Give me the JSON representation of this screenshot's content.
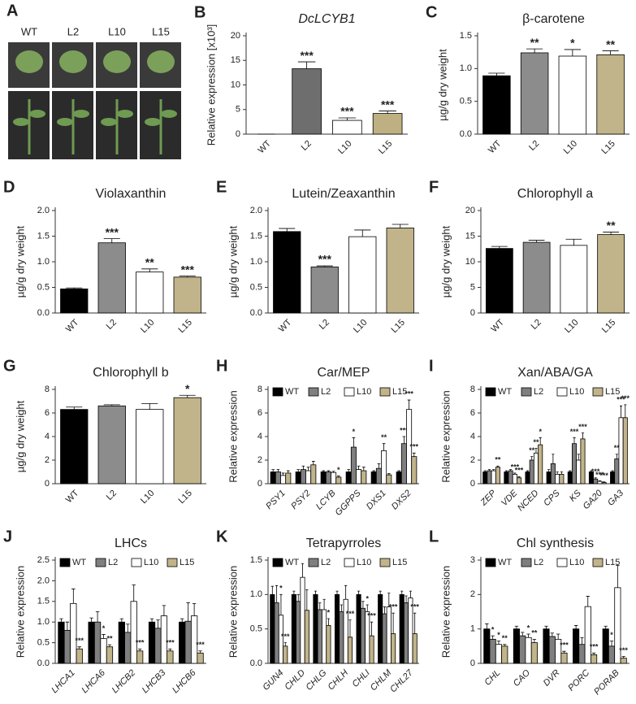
{
  "photos": {
    "panel": "A",
    "labels": [
      "WT",
      "L2",
      "L10",
      "L15"
    ]
  },
  "chart_data": [
    {
      "type": "bar",
      "panel": "B",
      "title": "DcLCYB1",
      "title_style": "italic",
      "ylabel": "Relative expression [x10³]",
      "categories": [
        "WT",
        "L2",
        "L10",
        "L15"
      ],
      "values": [
        0,
        13.3,
        2.8,
        4.2
      ],
      "errors": [
        0,
        1.4,
        0.5,
        0.5
      ],
      "significance": [
        null,
        "***",
        "***",
        "***"
      ],
      "colors": [
        "#000000",
        "#6e6e6e",
        "#ffffff",
        "#bfb083"
      ],
      "ylim": [
        0,
        20
      ],
      "yticks": [
        0,
        5,
        10,
        15,
        20
      ]
    },
    {
      "type": "bar",
      "panel": "C",
      "title": "β-carotene",
      "ylabel": "µg/g dry weight",
      "categories": [
        "WT",
        "L2",
        "L10",
        "L15"
      ],
      "values": [
        0.89,
        1.24,
        1.19,
        1.21
      ],
      "errors": [
        0.04,
        0.06,
        0.1,
        0.06
      ],
      "significance": [
        null,
        "**",
        "*",
        "**"
      ],
      "colors": [
        "#000000",
        "#8c8c8c",
        "#ffffff",
        "#c2b48a"
      ],
      "ylim": [
        0,
        1.5
      ],
      "yticks": [
        {
          "value": 0,
          "label": "0.0"
        },
        0.5,
        {
          "value": 1,
          "label": "1.0"
        },
        1.5
      ]
    },
    {
      "type": "bar",
      "panel": "D",
      "title": "Violaxanthin",
      "ylabel": "µg/g dry weight",
      "categories": [
        "WT",
        "L2",
        "L10",
        "L15"
      ],
      "values": [
        0.47,
        1.37,
        0.8,
        0.7
      ],
      "errors": [
        0.02,
        0.08,
        0.06,
        0.02
      ],
      "significance": [
        null,
        "***",
        "**",
        "***"
      ],
      "colors": [
        "#000000",
        "#8c8c8c",
        "#ffffff",
        "#c2b48a"
      ],
      "ylim": [
        0,
        2
      ],
      "yticks": [
        {
          "value": 0,
          "label": "0.0"
        },
        0.5,
        {
          "value": 1,
          "label": "1.0"
        },
        1.5,
        {
          "value": 2,
          "label": "2.0"
        }
      ]
    },
    {
      "type": "bar",
      "panel": "E",
      "title": "Lutein/Zeaxanthin",
      "ylabel": "µg/g dry weight",
      "categories": [
        "WT",
        "L2",
        "L10",
        "L15"
      ],
      "values": [
        1.59,
        0.9,
        1.49,
        1.66
      ],
      "errors": [
        0.06,
        0.02,
        0.13,
        0.07
      ],
      "significance": [
        null,
        "***",
        null,
        null
      ],
      "colors": [
        "#000000",
        "#8c8c8c",
        "#ffffff",
        "#c2b48a"
      ],
      "ylim": [
        0,
        2
      ],
      "yticks": [
        {
          "value": 0,
          "label": "0.0"
        },
        0.5,
        {
          "value": 1,
          "label": "1.0"
        },
        1.5,
        {
          "value": 2,
          "label": "2.0"
        }
      ]
    },
    {
      "type": "bar",
      "panel": "F",
      "title": "Chlorophyll a",
      "ylabel": "µg/g dry weight",
      "categories": [
        "WT",
        "L2",
        "L10",
        "L15"
      ],
      "values": [
        12.6,
        13.8,
        13.2,
        15.3
      ],
      "errors": [
        0.4,
        0.4,
        1.2,
        0.5
      ],
      "significance": [
        null,
        null,
        null,
        "**"
      ],
      "colors": [
        "#000000",
        "#8c8c8c",
        "#ffffff",
        "#c2b48a"
      ],
      "ylim": [
        0,
        20
      ],
      "yticks": [
        0,
        5,
        10,
        15,
        20
      ]
    },
    {
      "type": "bar",
      "panel": "G",
      "title": "Chlorophyll b",
      "ylabel": "µg/g dry weight",
      "categories": [
        "WT",
        "L2",
        "L10",
        "L15"
      ],
      "values": [
        6.3,
        6.6,
        6.3,
        7.3
      ],
      "errors": [
        0.2,
        0.1,
        0.5,
        0.2
      ],
      "significance": [
        null,
        null,
        null,
        "*"
      ],
      "colors": [
        "#000000",
        "#8c8c8c",
        "#ffffff",
        "#c2b48a"
      ],
      "ylim": [
        0,
        8
      ],
      "yticks": [
        0,
        2,
        4,
        6,
        8
      ]
    },
    {
      "type": "bar",
      "panel": "H",
      "title": "Car/MEP",
      "ylabel": "Relative expression",
      "category_style": "italic",
      "categories": [
        "PSY1",
        "PSY2",
        "LCYB",
        "GGPPS",
        "DXS1",
        "DXS2"
      ],
      "ylim": [
        0,
        8
      ],
      "yticks": [
        0,
        2,
        4,
        6,
        8
      ],
      "series": [
        {
          "name": "WT",
          "color": "#000000",
          "values": [
            1,
            1,
            1,
            1,
            1,
            1
          ],
          "errors": [
            0.2,
            0.2,
            0.1,
            0.2,
            0.1,
            0.1
          ],
          "significance": [
            null,
            null,
            null,
            null,
            null,
            null
          ]
        },
        {
          "name": "L2",
          "color": "#7f7f7f",
          "values": [
            1.0,
            1.2,
            1.0,
            3.1,
            1.3,
            3.4
          ],
          "errors": [
            0.2,
            0.3,
            0.1,
            0.8,
            0.4,
            0.6
          ],
          "significance": [
            null,
            null,
            null,
            "*",
            null,
            "***"
          ]
        },
        {
          "name": "L10",
          "color": "#ffffff",
          "values": [
            0.7,
            1.1,
            0.95,
            1.2,
            2.8,
            6.3
          ],
          "errors": [
            0.2,
            0.3,
            0.1,
            0.3,
            0.6,
            0.8
          ],
          "significance": [
            null,
            null,
            null,
            null,
            "**",
            "***"
          ]
        },
        {
          "name": "L15",
          "color": "#c2b48a",
          "values": [
            0.9,
            1.6,
            0.55,
            1.1,
            0.75,
            2.3
          ],
          "errors": [
            0.2,
            0.3,
            0.1,
            0.3,
            0.1,
            0.3
          ],
          "significance": [
            null,
            null,
            "*",
            null,
            null,
            "***"
          ]
        }
      ]
    },
    {
      "type": "bar",
      "panel": "I",
      "title": "Xan/ABA/GA",
      "ylabel": "Relative expression",
      "category_style": "italic",
      "categories": [
        "ZEP",
        "VDE",
        "NCED",
        "CPS",
        "KS",
        "GA20",
        "GA3"
      ],
      "ylim": [
        0,
        8
      ],
      "yticks": [
        0,
        2,
        4,
        6,
        8
      ],
      "series": [
        {
          "name": "WT",
          "color": "#000000",
          "values": [
            1,
            1,
            1,
            1,
            1,
            1,
            1
          ],
          "errors": [
            0.1,
            0.1,
            0.1,
            0.2,
            0.1,
            0.1,
            0.1
          ],
          "significance": [
            null,
            null,
            null,
            null,
            null,
            null,
            null
          ]
        },
        {
          "name": "L2",
          "color": "#7f7f7f",
          "values": [
            1.1,
            1.1,
            2.0,
            1.7,
            3.4,
            0.4,
            2.1
          ],
          "errors": [
            0.1,
            0.1,
            0.3,
            0.8,
            0.5,
            0.1,
            0.4
          ],
          "significance": [
            null,
            null,
            "**",
            null,
            "***",
            "***",
            "**"
          ]
        },
        {
          "name": "L10",
          "color": "#ffffff",
          "values": [
            1.1,
            0.8,
            2.6,
            0.8,
            2.0,
            0.2,
            5.6
          ],
          "errors": [
            0.1,
            0.1,
            0.4,
            0.2,
            0.5,
            0.05,
            1.0
          ],
          "significance": [
            null,
            "***",
            "**",
            null,
            null,
            "***",
            "***"
          ]
        },
        {
          "name": "L15",
          "color": "#c2b48a",
          "values": [
            1.4,
            0.5,
            3.3,
            0.8,
            3.8,
            0.1,
            5.6
          ],
          "errors": [
            0.1,
            0.1,
            0.6,
            0.2,
            0.5,
            0.05,
            1.1
          ],
          "significance": [
            "**",
            "***",
            "*",
            null,
            "***",
            "***",
            "***"
          ]
        }
      ]
    },
    {
      "type": "bar",
      "panel": "J",
      "title": "LHCs",
      "ylabel": "Relative expression",
      "category_style": "italic",
      "categories": [
        "LHCA1",
        "LHCA6",
        "LHCB2",
        "LHCB3",
        "LHCB6"
      ],
      "ylim": [
        0,
        2.5
      ],
      "yticks": [
        {
          "value": 0,
          "label": "0.0"
        },
        0.5,
        {
          "value": 1,
          "label": "1.0"
        },
        1.5,
        {
          "value": 2,
          "label": "2.0"
        },
        2.5
      ],
      "series": [
        {
          "name": "WT",
          "color": "#000000",
          "values": [
            1,
            1,
            1,
            1,
            1
          ],
          "errors": [
            0.08,
            0.1,
            0.08,
            0.08,
            0.08
          ],
          "significance": [
            null,
            null,
            null,
            null,
            null
          ]
        },
        {
          "name": "L2",
          "color": "#7f7f7f",
          "values": [
            0.8,
            1.0,
            0.75,
            0.85,
            1.02
          ],
          "errors": [
            0.2,
            0.25,
            0.2,
            0.2,
            0.45
          ],
          "significance": [
            null,
            null,
            null,
            null,
            null
          ]
        },
        {
          "name": "L10",
          "color": "#ffffff",
          "values": [
            1.45,
            0.6,
            1.5,
            1.15,
            1.15
          ],
          "errors": [
            0.35,
            0.1,
            0.4,
            0.25,
            0.3
          ],
          "significance": [
            null,
            "*",
            null,
            null,
            null
          ]
        },
        {
          "name": "L15",
          "color": "#c2b48a",
          "values": [
            0.35,
            0.4,
            0.3,
            0.3,
            0.25
          ],
          "errors": [
            0.05,
            0.05,
            0.05,
            0.05,
            0.05
          ],
          "significance": [
            "***",
            "**",
            "***",
            "***",
            "***"
          ]
        }
      ]
    },
    {
      "type": "bar",
      "panel": "K",
      "title": "Tetrapyrroles",
      "ylabel": "Relative expression",
      "category_style": "italic",
      "categories": [
        "GUN4",
        "CHLD",
        "CHLG",
        "CHLH",
        "CHLI",
        "CHLM",
        "CHL27"
      ],
      "ylim": [
        0,
        1.5
      ],
      "yticks": [
        {
          "value": 0,
          "label": "0.0"
        },
        0.5,
        {
          "value": 1,
          "label": "1.0"
        },
        1.5
      ],
      "series": [
        {
          "name": "WT",
          "color": "#000000",
          "values": [
            1,
            1,
            1,
            1,
            1,
            1,
            1
          ],
          "errors": [
            0.12,
            0.05,
            0.05,
            0.05,
            0.05,
            0.05,
            0.05
          ],
          "significance": [
            null,
            null,
            null,
            null,
            null,
            null,
            null
          ]
        },
        {
          "name": "L2",
          "color": "#7f7f7f",
          "values": [
            0.88,
            0.9,
            0.78,
            0.75,
            0.8,
            0.72,
            0.88
          ],
          "errors": [
            0.25,
            0.1,
            0.1,
            0.1,
            0.1,
            0.1,
            0.1
          ],
          "significance": [
            null,
            null,
            null,
            null,
            null,
            null,
            null
          ]
        },
        {
          "name": "L10",
          "color": "#ffffff",
          "values": [
            0.7,
            1.25,
            0.78,
            0.93,
            0.75,
            0.82,
            0.95
          ],
          "errors": [
            0.3,
            0.2,
            0.15,
            0.2,
            0.1,
            0.2,
            0.1
          ],
          "significance": [
            "*",
            null,
            null,
            null,
            "*",
            null,
            null
          ]
        },
        {
          "name": "L15",
          "color": "#c2b48a",
          "values": [
            0.25,
            0.77,
            0.55,
            0.38,
            0.4,
            0.43,
            0.43
          ],
          "errors": [
            0.05,
            0.3,
            0.1,
            0.25,
            0.2,
            0.3,
            0.3
          ],
          "significance": [
            "***",
            null,
            "*",
            "***",
            "***",
            "***",
            "***"
          ]
        }
      ]
    },
    {
      "type": "bar",
      "panel": "L",
      "title": "Chl synthesis",
      "ylabel": "Relative expression",
      "category_style": "italic",
      "categories": [
        "CHL",
        "CAO",
        "DVR",
        "PORC",
        "PORAB"
      ],
      "ylim": [
        0,
        3
      ],
      "yticks": [
        0,
        1,
        2,
        3
      ],
      "series": [
        {
          "name": "WT",
          "color": "#000000",
          "values": [
            1,
            1,
            1,
            1,
            1
          ],
          "errors": [
            0.15,
            0.08,
            0.08,
            0.1,
            0.08
          ],
          "significance": [
            null,
            null,
            null,
            null,
            null
          ]
        },
        {
          "name": "L2",
          "color": "#7f7f7f",
          "values": [
            0.7,
            0.8,
            0.78,
            0.55,
            0.5
          ],
          "errors": [
            0.1,
            0.1,
            0.1,
            0.2,
            0.15
          ],
          "significance": [
            "*",
            null,
            null,
            null,
            "*"
          ]
        },
        {
          "name": "L10",
          "color": "#ffffff",
          "values": [
            0.55,
            0.75,
            0.7,
            1.65,
            2.2
          ],
          "errors": [
            0.1,
            0.1,
            0.15,
            0.3,
            0.65
          ],
          "significance": [
            "*",
            "*",
            null,
            null,
            null
          ]
        },
        {
          "name": "L15",
          "color": "#c2b48a",
          "values": [
            0.5,
            0.6,
            0.3,
            0.25,
            0.15
          ],
          "errors": [
            0.05,
            0.1,
            0.05,
            0.05,
            0.05
          ],
          "significance": [
            "**",
            "**",
            "***",
            "***",
            "***"
          ]
        }
      ]
    }
  ]
}
